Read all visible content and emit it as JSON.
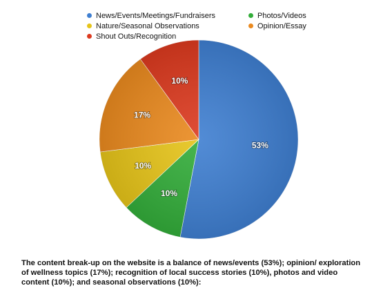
{
  "chart_data": {
    "type": "pie",
    "categories": [
      "News/Events/Meetings/Fundraisers",
      "Photos/Videos",
      "Nature/Seasonal Observations",
      "Opinion/Essay",
      "Shout Outs/Recognition"
    ],
    "values": [
      53,
      10,
      10,
      17,
      10
    ],
    "data_labels": [
      "53%",
      "10%",
      "10%",
      "17%",
      "10%"
    ],
    "colors": [
      "#3f7fd1",
      "#33ad3a",
      "#e6c419",
      "#ea8a1f",
      "#dc3a1f"
    ],
    "legend_position": "top",
    "start_angle_deg": 0,
    "direction": "clockwise"
  },
  "caption": "The content break-up on the website is a balance of news/events (53%); opinion/ exploration of wellness topics (17%); recognition of local success stories (10%), photos and video content (10%); and seasonal observations (10%):"
}
